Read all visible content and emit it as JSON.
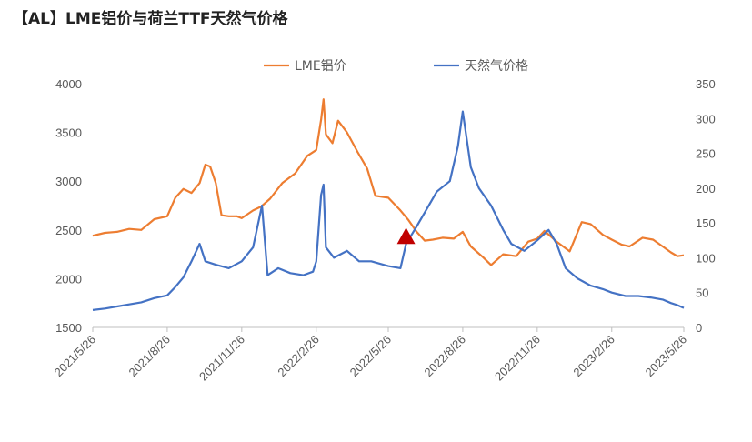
{
  "title": "【AL】LME铝价与荷兰TTF天然气价格",
  "chart_data": {
    "type": "line",
    "title": "【AL】LME铝价与荷兰TTF天然气价格",
    "legend_position": "top-center",
    "grid": false,
    "y_left": {
      "ylim": [
        1500,
        4000
      ],
      "ticks": [
        "1500",
        "2000",
        "2500",
        "3000",
        "3500",
        "4000"
      ]
    },
    "y_right": {
      "ylim": [
        0,
        350
      ],
      "ticks": [
        "0",
        "50",
        "100",
        "150",
        "200",
        "250",
        "300",
        "350"
      ]
    },
    "x_tick_labels": [
      "2021/5/26",
      "2021/8/26",
      "2021/11/26",
      "2022/2/26",
      "2022/5/26",
      "2022/8/26",
      "2022/11/26",
      "2023/2/26",
      "2023/5/26"
    ],
    "x_range": [
      "2021/5/26",
      "2023/5/26"
    ],
    "series": [
      {
        "name": "LME铝价",
        "axis": "left",
        "color": "#ED7D31",
        "points": [
          [
            "2021/5/26",
            2440
          ],
          [
            "2021/6/10",
            2470
          ],
          [
            "2021/6/25",
            2480
          ],
          [
            "2021/7/10",
            2510
          ],
          [
            "2021/7/25",
            2500
          ],
          [
            "2021/8/10",
            2610
          ],
          [
            "2021/8/26",
            2640
          ],
          [
            "2021/9/5",
            2830
          ],
          [
            "2021/9/15",
            2920
          ],
          [
            "2021/9/25",
            2880
          ],
          [
            "2021/10/5",
            2980
          ],
          [
            "2021/10/12",
            3170
          ],
          [
            "2021/10/18",
            3150
          ],
          [
            "2021/10/25",
            2980
          ],
          [
            "2021/11/1",
            2650
          ],
          [
            "2021/11/10",
            2640
          ],
          [
            "2021/11/20",
            2640
          ],
          [
            "2021/11/26",
            2620
          ],
          [
            "2021/12/10",
            2700
          ],
          [
            "2021/12/20",
            2740
          ],
          [
            "2021/12/31",
            2820
          ],
          [
            "2022/1/15",
            2980
          ],
          [
            "2022/1/31",
            3080
          ],
          [
            "2022/2/15",
            3260
          ],
          [
            "2022/2/26",
            3320
          ],
          [
            "2022/3/4",
            3630
          ],
          [
            "2022/3/7",
            3840
          ],
          [
            "2022/3/10",
            3480
          ],
          [
            "2022/3/18",
            3390
          ],
          [
            "2022/3/25",
            3620
          ],
          [
            "2022/4/5",
            3500
          ],
          [
            "2022/4/18",
            3300
          ],
          [
            "2022/4/30",
            3130
          ],
          [
            "2022/5/10",
            2850
          ],
          [
            "2022/5/26",
            2830
          ],
          [
            "2022/6/10",
            2700
          ],
          [
            "2022/6/20",
            2600
          ],
          [
            "2022/6/30",
            2480
          ],
          [
            "2022/7/10",
            2390
          ],
          [
            "2022/7/20",
            2400
          ],
          [
            "2022/8/1",
            2420
          ],
          [
            "2022/8/15",
            2410
          ],
          [
            "2022/8/26",
            2480
          ],
          [
            "2022/9/5",
            2330
          ],
          [
            "2022/9/20",
            2220
          ],
          [
            "2022/9/30",
            2140
          ],
          [
            "2022/10/15",
            2250
          ],
          [
            "2022/10/31",
            2230
          ],
          [
            "2022/11/15",
            2380
          ],
          [
            "2022/11/26",
            2410
          ],
          [
            "2022/12/5",
            2490
          ],
          [
            "2022/12/20",
            2380
          ],
          [
            "2023/1/5",
            2280
          ],
          [
            "2023/1/20",
            2580
          ],
          [
            "2023/1/31",
            2560
          ],
          [
            "2023/2/15",
            2450
          ],
          [
            "2023/2/26",
            2400
          ],
          [
            "2023/3/10",
            2350
          ],
          [
            "2023/3/20",
            2330
          ],
          [
            "2023/4/5",
            2420
          ],
          [
            "2023/4/18",
            2400
          ],
          [
            "2023/4/30",
            2330
          ],
          [
            "2023/5/10",
            2270
          ],
          [
            "2023/5/18",
            2230
          ],
          [
            "2023/5/26",
            2240
          ]
        ]
      },
      {
        "name": "天然气价格",
        "axis": "right",
        "color": "#4472C4",
        "points": [
          [
            "2021/5/26",
            25
          ],
          [
            "2021/6/10",
            27
          ],
          [
            "2021/6/25",
            30
          ],
          [
            "2021/7/10",
            33
          ],
          [
            "2021/7/25",
            36
          ],
          [
            "2021/8/10",
            42
          ],
          [
            "2021/8/26",
            46
          ],
          [
            "2021/9/5",
            58
          ],
          [
            "2021/9/15",
            72
          ],
          [
            "2021/9/25",
            95
          ],
          [
            "2021/10/5",
            120
          ],
          [
            "2021/10/12",
            95
          ],
          [
            "2021/10/25",
            90
          ],
          [
            "2021/11/10",
            85
          ],
          [
            "2021/11/26",
            95
          ],
          [
            "2021/12/10",
            115
          ],
          [
            "2021/12/21",
            175
          ],
          [
            "2021/12/28",
            75
          ],
          [
            "2022/1/10",
            85
          ],
          [
            "2022/1/25",
            78
          ],
          [
            "2022/2/10",
            75
          ],
          [
            "2022/2/22",
            80
          ],
          [
            "2022/2/26",
            95
          ],
          [
            "2022/3/4",
            190
          ],
          [
            "2022/3/7",
            205
          ],
          [
            "2022/3/10",
            115
          ],
          [
            "2022/3/20",
            100
          ],
          [
            "2022/4/5",
            110
          ],
          [
            "2022/4/20",
            95
          ],
          [
            "2022/5/5",
            95
          ],
          [
            "2022/5/26",
            88
          ],
          [
            "2022/6/10",
            85
          ],
          [
            "2022/6/17",
            120
          ],
          [
            "2022/6/30",
            145
          ],
          [
            "2022/7/10",
            165
          ],
          [
            "2022/7/25",
            195
          ],
          [
            "2022/8/10",
            210
          ],
          [
            "2022/8/20",
            260
          ],
          [
            "2022/8/26",
            310
          ],
          [
            "2022/9/5",
            230
          ],
          [
            "2022/9/15",
            200
          ],
          [
            "2022/9/30",
            175
          ],
          [
            "2022/10/15",
            140
          ],
          [
            "2022/10/25",
            120
          ],
          [
            "2022/11/10",
            110
          ],
          [
            "2022/11/26",
            125
          ],
          [
            "2022/12/10",
            140
          ],
          [
            "2022/12/20",
            120
          ],
          [
            "2022/12/31",
            85
          ],
          [
            "2023/1/15",
            70
          ],
          [
            "2023/1/31",
            60
          ],
          [
            "2023/2/15",
            55
          ],
          [
            "2023/2/26",
            50
          ],
          [
            "2023/3/15",
            45
          ],
          [
            "2023/3/31",
            45
          ],
          [
            "2023/4/15",
            43
          ],
          [
            "2023/4/30",
            40
          ],
          [
            "2023/5/10",
            35
          ],
          [
            "2023/5/18",
            32
          ],
          [
            "2023/5/26",
            28
          ]
        ]
      }
    ],
    "marker": {
      "shape": "triangle",
      "color": "#C00000",
      "date": "2022/6/17",
      "left_value": 2430
    }
  }
}
